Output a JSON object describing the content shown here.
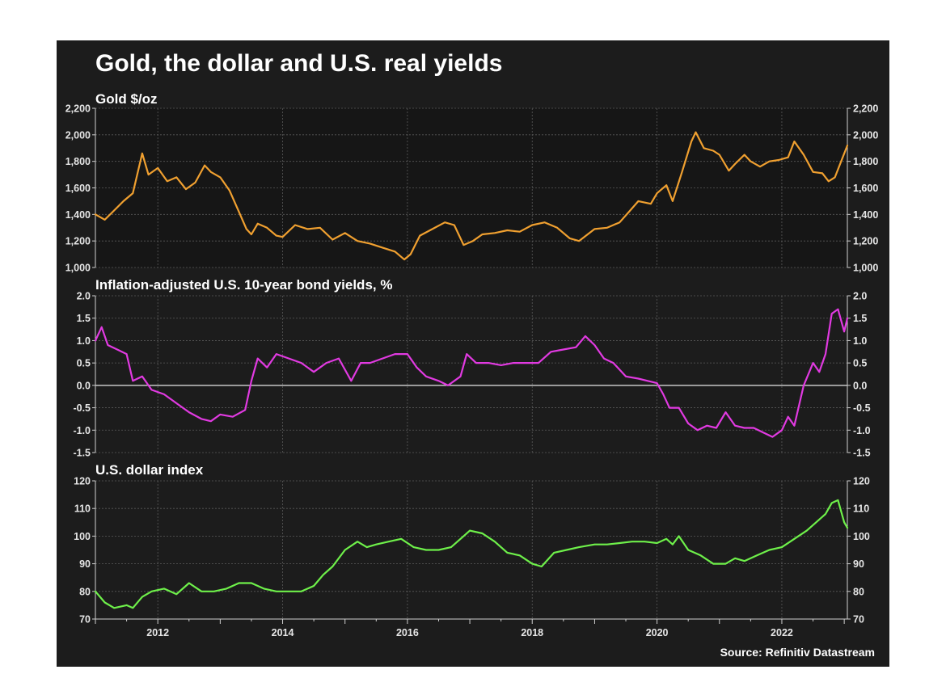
{
  "title": "Gold, the dollar and U.S. real yields",
  "source": "Source: Refinitiv Datastream",
  "chart_data": [
    {
      "type": "line",
      "name": "gold",
      "title": "Gold $/oz",
      "color": "#f0a030",
      "ylim": [
        1000,
        2200
      ],
      "yticks": [
        "1,000",
        "1,200",
        "1,400",
        "1,600",
        "1,800",
        "2,000",
        "2,200"
      ],
      "ytick_values": [
        1000,
        1200,
        1400,
        1600,
        1800,
        2000,
        2200
      ],
      "xlim": [
        2011,
        2023.05
      ],
      "x": [
        2011.0,
        2011.15,
        2011.3,
        2011.45,
        2011.6,
        2011.68,
        2011.75,
        2011.85,
        2012.0,
        2012.15,
        2012.3,
        2012.45,
        2012.6,
        2012.75,
        2012.85,
        2013.0,
        2013.15,
        2013.3,
        2013.42,
        2013.5,
        2013.6,
        2013.75,
        2013.9,
        2014.0,
        2014.2,
        2014.4,
        2014.6,
        2014.8,
        2015.0,
        2015.2,
        2015.4,
        2015.6,
        2015.8,
        2015.95,
        2016.05,
        2016.2,
        2016.4,
        2016.6,
        2016.75,
        2016.9,
        2017.05,
        2017.2,
        2017.4,
        2017.6,
        2017.8,
        2018.0,
        2018.2,
        2018.4,
        2018.6,
        2018.75,
        2019.0,
        2019.2,
        2019.4,
        2019.55,
        2019.7,
        2019.9,
        2020.0,
        2020.15,
        2020.25,
        2020.4,
        2020.55,
        2020.62,
        2020.75,
        2020.9,
        2021.0,
        2021.15,
        2021.25,
        2021.4,
        2021.5,
        2021.65,
        2021.8,
        2021.95,
        2022.1,
        2022.2,
        2022.35,
        2022.5,
        2022.65,
        2022.75,
        2022.85,
        2022.95,
        2023.05
      ],
      "y": [
        1400,
        1360,
        1430,
        1500,
        1560,
        1720,
        1860,
        1700,
        1750,
        1650,
        1680,
        1590,
        1640,
        1770,
        1720,
        1680,
        1580,
        1420,
        1290,
        1250,
        1330,
        1300,
        1240,
        1230,
        1320,
        1290,
        1300,
        1210,
        1260,
        1200,
        1180,
        1150,
        1120,
        1060,
        1100,
        1240,
        1290,
        1340,
        1320,
        1170,
        1200,
        1250,
        1260,
        1280,
        1270,
        1320,
        1340,
        1300,
        1220,
        1200,
        1290,
        1300,
        1340,
        1420,
        1500,
        1480,
        1560,
        1620,
        1500,
        1720,
        1950,
        2020,
        1900,
        1880,
        1850,
        1730,
        1780,
        1850,
        1800,
        1760,
        1800,
        1810,
        1830,
        1950,
        1850,
        1720,
        1710,
        1650,
        1680,
        1800,
        1920
      ]
    },
    {
      "type": "line",
      "name": "real-yields",
      "title": "Inflation-adjusted U.S. 10-year bond yields, %",
      "color": "#e13ae1",
      "ylim": [
        -1.5,
        2.0
      ],
      "yticks": [
        "-1.5",
        "-1.0",
        "-0.5",
        "0.0",
        "0.5",
        "1.0",
        "1.5",
        "2.0"
      ],
      "ytick_values": [
        -1.5,
        -1.0,
        -0.5,
        0.0,
        0.5,
        1.0,
        1.5,
        2.0
      ],
      "xlim": [
        2011,
        2023.05
      ],
      "x": [
        2011.0,
        2011.1,
        2011.2,
        2011.35,
        2011.5,
        2011.6,
        2011.75,
        2011.9,
        2012.1,
        2012.3,
        2012.5,
        2012.7,
        2012.85,
        2013.0,
        2013.2,
        2013.4,
        2013.5,
        2013.6,
        2013.75,
        2013.9,
        2014.1,
        2014.3,
        2014.5,
        2014.7,
        2014.9,
        2015.1,
        2015.25,
        2015.4,
        2015.6,
        2015.8,
        2016.0,
        2016.15,
        2016.3,
        2016.5,
        2016.65,
        2016.85,
        2016.95,
        2017.1,
        2017.3,
        2017.5,
        2017.7,
        2017.9,
        2018.1,
        2018.3,
        2018.5,
        2018.7,
        2018.85,
        2019.0,
        2019.15,
        2019.3,
        2019.5,
        2019.7,
        2019.85,
        2020.0,
        2020.1,
        2020.2,
        2020.35,
        2020.5,
        2020.65,
        2020.8,
        2020.95,
        2021.1,
        2021.25,
        2021.4,
        2021.55,
        2021.7,
        2021.85,
        2022.0,
        2022.1,
        2022.2,
        2022.35,
        2022.5,
        2022.6,
        2022.7,
        2022.8,
        2022.9,
        2023.0,
        2023.05
      ],
      "y": [
        1.0,
        1.3,
        0.9,
        0.8,
        0.7,
        0.1,
        0.2,
        -0.1,
        -0.2,
        -0.4,
        -0.6,
        -0.75,
        -0.8,
        -0.65,
        -0.7,
        -0.55,
        0.1,
        0.6,
        0.4,
        0.7,
        0.6,
        0.5,
        0.3,
        0.5,
        0.6,
        0.1,
        0.5,
        0.5,
        0.6,
        0.7,
        0.7,
        0.4,
        0.2,
        0.1,
        0.0,
        0.2,
        0.7,
        0.5,
        0.5,
        0.45,
        0.5,
        0.5,
        0.5,
        0.75,
        0.8,
        0.85,
        1.1,
        0.9,
        0.6,
        0.5,
        0.2,
        0.15,
        0.1,
        0.05,
        -0.2,
        -0.5,
        -0.5,
        -0.85,
        -1.0,
        -0.9,
        -0.95,
        -0.6,
        -0.9,
        -0.95,
        -0.95,
        -1.05,
        -1.15,
        -1.0,
        -0.7,
        -0.9,
        0.0,
        0.5,
        0.3,
        0.7,
        1.6,
        1.7,
        1.2,
        1.5
      ]
    },
    {
      "type": "line",
      "name": "dollar-index",
      "title": "U.S. dollar index",
      "color": "#6ef04a",
      "ylim": [
        70,
        120
      ],
      "yticks": [
        "70",
        "80",
        "90",
        "100",
        "110",
        "120"
      ],
      "ytick_values": [
        70,
        80,
        90,
        100,
        110,
        120
      ],
      "xlim": [
        2011,
        2023.05
      ],
      "x": [
        2011.0,
        2011.15,
        2011.3,
        2011.5,
        2011.6,
        2011.75,
        2011.9,
        2012.1,
        2012.3,
        2012.5,
        2012.7,
        2012.9,
        2013.1,
        2013.3,
        2013.5,
        2013.7,
        2013.9,
        2014.1,
        2014.3,
        2014.5,
        2014.65,
        2014.8,
        2015.0,
        2015.2,
        2015.35,
        2015.5,
        2015.7,
        2015.9,
        2016.1,
        2016.3,
        2016.5,
        2016.7,
        2016.9,
        2017.0,
        2017.2,
        2017.4,
        2017.6,
        2017.8,
        2018.0,
        2018.15,
        2018.35,
        2018.55,
        2018.75,
        2019.0,
        2019.2,
        2019.4,
        2019.6,
        2019.8,
        2020.0,
        2020.15,
        2020.25,
        2020.35,
        2020.5,
        2020.7,
        2020.9,
        2021.1,
        2021.25,
        2021.4,
        2021.6,
        2021.8,
        2022.0,
        2022.2,
        2022.4,
        2022.55,
        2022.7,
        2022.8,
        2022.9,
        2023.0,
        2023.05
      ],
      "y": [
        80,
        76,
        74,
        75,
        74,
        78,
        80,
        81,
        79,
        83,
        80,
        80,
        81,
        83,
        83,
        81,
        80,
        80,
        80,
        82,
        86,
        89,
        95,
        98,
        96,
        97,
        98,
        99,
        96,
        95,
        95,
        96,
        100,
        102,
        101,
        98,
        94,
        93,
        90,
        89,
        94,
        95,
        96,
        97,
        97,
        97.5,
        98,
        98,
        97.5,
        99,
        97,
        100,
        95,
        93,
        90,
        90,
        92,
        91,
        93,
        95,
        96,
        99,
        102,
        105,
        108,
        112,
        113,
        105,
        103
      ]
    }
  ],
  "x_axis": {
    "ticks": [
      "2012",
      "2014",
      "2016",
      "2018",
      "2020",
      "2022"
    ],
    "tick_values": [
      2012,
      2014,
      2016,
      2018,
      2020,
      2022
    ]
  }
}
